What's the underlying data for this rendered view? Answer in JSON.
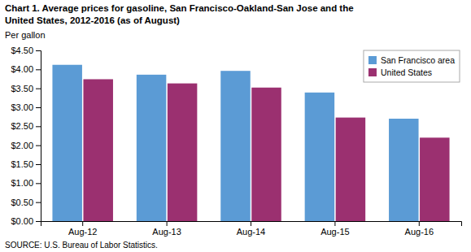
{
  "chart_data": {
    "type": "bar",
    "title": [
      "Chart 1. Average prices for gasoline, San Francisco-Oakland-San Jose  and the",
      "United States, 2012-2016  (as of August)"
    ],
    "ylabel": "Per gallon",
    "source": "SOURCE: U.S. Bureau of Labor Statistics.",
    "categories": [
      "Aug-12",
      "Aug-13",
      "Aug-14",
      "Aug-15",
      "Aug-16"
    ],
    "series": [
      {
        "name": "San Francisco area",
        "color": "#5B9BD5",
        "values": [
          4.12,
          3.86,
          3.96,
          3.39,
          2.7
        ]
      },
      {
        "name": "United States",
        "color": "#9B3070",
        "values": [
          3.74,
          3.63,
          3.52,
          2.73,
          2.2
        ]
      }
    ],
    "ylim": [
      0,
      4.5
    ],
    "yticks": [
      {
        "value": 0.0,
        "label": "$0.00"
      },
      {
        "value": 0.5,
        "label": "$0.50"
      },
      {
        "value": 1.0,
        "label": "$1.00"
      },
      {
        "value": 1.5,
        "label": "$1.50"
      },
      {
        "value": 2.0,
        "label": "$2.00"
      },
      {
        "value": 2.5,
        "label": "$2.50"
      },
      {
        "value": 3.0,
        "label": "$3.00"
      },
      {
        "value": 3.5,
        "label": "$3.50"
      },
      {
        "value": 4.0,
        "label": "$4.00"
      },
      {
        "value": 4.5,
        "label": "$4.50"
      }
    ],
    "legend": "upper right",
    "grid": false
  }
}
